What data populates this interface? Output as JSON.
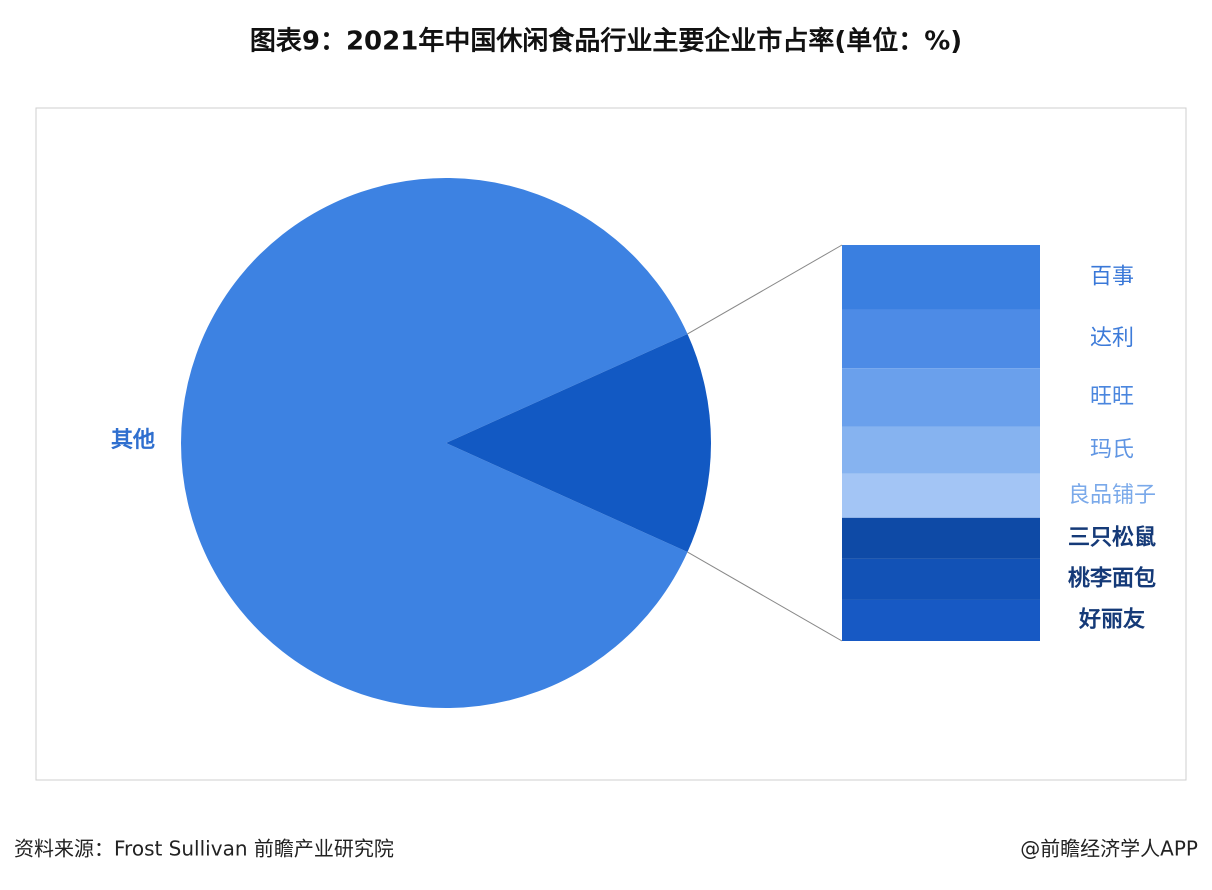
{
  "chart_data": {
    "type": "pie-of-bar",
    "title": "图表9：2021年中国休闲食品行业主要企业市占率(单位：%)",
    "pie": {
      "categories": [
        "其他"
      ],
      "values": [
        86.5
      ],
      "colors": [
        "#3d82e2"
      ],
      "detail_color": "#1259c3"
    },
    "bar": {
      "categories": [
        "百事",
        "达利",
        "旺旺",
        "玛氏",
        "良品铺子",
        "三只松鼠",
        "桃李面包",
        "好丽友"
      ],
      "values": [
        2.2,
        2.0,
        2.0,
        1.6,
        1.5,
        1.4,
        1.4,
        1.4
      ],
      "colors": [
        "#3a7fe0",
        "#4d8be6",
        "#6aa0ec",
        "#86b3f0",
        "#a3c5f5",
        "#0e4aa6",
        "#1252b6",
        "#1759c4"
      ],
      "label_colors": [
        "#3a78d8",
        "#3d7bd9",
        "#4a86de",
        "#5f95e3",
        "#7aa9ea",
        "#153a78",
        "#153a78",
        "#153a78"
      ]
    }
  },
  "footer": {
    "source": "资料来源：Frost Sullivan 前瞻产业研究院",
    "brand": "@前瞻经济学人APP"
  }
}
